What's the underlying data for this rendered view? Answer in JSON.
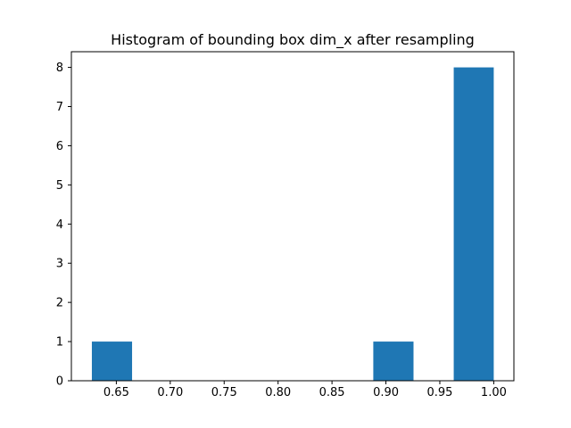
{
  "chart_data": {
    "type": "bar",
    "title": "Histogram of bounding box dim_x after resampling",
    "xlabel": "",
    "ylabel": "",
    "xlim": [
      0.6083,
      1.0187
    ],
    "ylim": [
      0,
      8.4
    ],
    "bins": [
      {
        "x0": 0.6273,
        "x1": 0.6646,
        "value": 1
      },
      {
        "x0": 0.6646,
        "x1": 0.7019,
        "value": 0
      },
      {
        "x0": 0.7019,
        "x1": 0.7392,
        "value": 0
      },
      {
        "x0": 0.7392,
        "x1": 0.7765,
        "value": 0
      },
      {
        "x0": 0.7765,
        "x1": 0.8138,
        "value": 0
      },
      {
        "x0": 0.8138,
        "x1": 0.851,
        "value": 0
      },
      {
        "x0": 0.851,
        "x1": 0.8883,
        "value": 0
      },
      {
        "x0": 0.8883,
        "x1": 0.9256,
        "value": 1
      },
      {
        "x0": 0.9256,
        "x1": 0.9629,
        "value": 0
      },
      {
        "x0": 0.9629,
        "x1": 1.0,
        "value": 8
      }
    ],
    "x_ticks": [
      {
        "value": 0.65,
        "label": "0.65"
      },
      {
        "value": 0.7,
        "label": "0.70"
      },
      {
        "value": 0.75,
        "label": "0.75"
      },
      {
        "value": 0.8,
        "label": "0.80"
      },
      {
        "value": 0.85,
        "label": "0.85"
      },
      {
        "value": 0.9,
        "label": "0.90"
      },
      {
        "value": 0.95,
        "label": "0.95"
      },
      {
        "value": 1.0,
        "label": "1.00"
      }
    ],
    "y_ticks": [
      {
        "value": 0,
        "label": "0"
      },
      {
        "value": 1,
        "label": "1"
      },
      {
        "value": 2,
        "label": "2"
      },
      {
        "value": 3,
        "label": "3"
      },
      {
        "value": 4,
        "label": "4"
      },
      {
        "value": 5,
        "label": "5"
      },
      {
        "value": 6,
        "label": "6"
      },
      {
        "value": 7,
        "label": "7"
      },
      {
        "value": 8,
        "label": "8"
      }
    ],
    "bar_color": "#1f77b4",
    "grid": false,
    "legend": "none"
  }
}
